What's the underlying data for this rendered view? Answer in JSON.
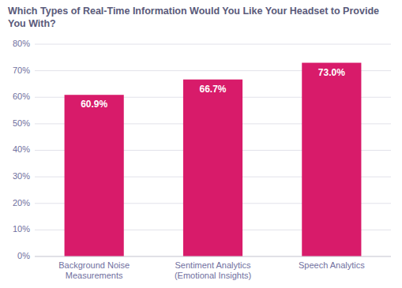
{
  "chart_data": {
    "type": "bar",
    "title": "Which Types of Real-Time Information Would You Like Your Headset to Provide You With?",
    "categories": [
      "Background Noise\nMeasurements",
      "Sentiment Analytics\n(Emotional Insights)",
      "Speech Analytics"
    ],
    "values": [
      60.9,
      66.7,
      73.0
    ],
    "value_labels": [
      "60.9%",
      "66.7%",
      "73.0%"
    ],
    "data_labels": true,
    "color": "#d81b6a",
    "ylim": [
      0,
      80
    ],
    "yticks": [
      {
        "value": 0,
        "label": "0%"
      },
      {
        "value": 10,
        "label": "10%"
      },
      {
        "value": 20,
        "label": "20%"
      },
      {
        "value": 30,
        "label": "30%"
      },
      {
        "value": 40,
        "label": "40%"
      },
      {
        "value": 50,
        "label": "50%"
      },
      {
        "value": 60,
        "label": "60%"
      },
      {
        "value": 70,
        "label": "70%"
      },
      {
        "value": 80,
        "label": "80%"
      }
    ],
    "grid": true
  }
}
